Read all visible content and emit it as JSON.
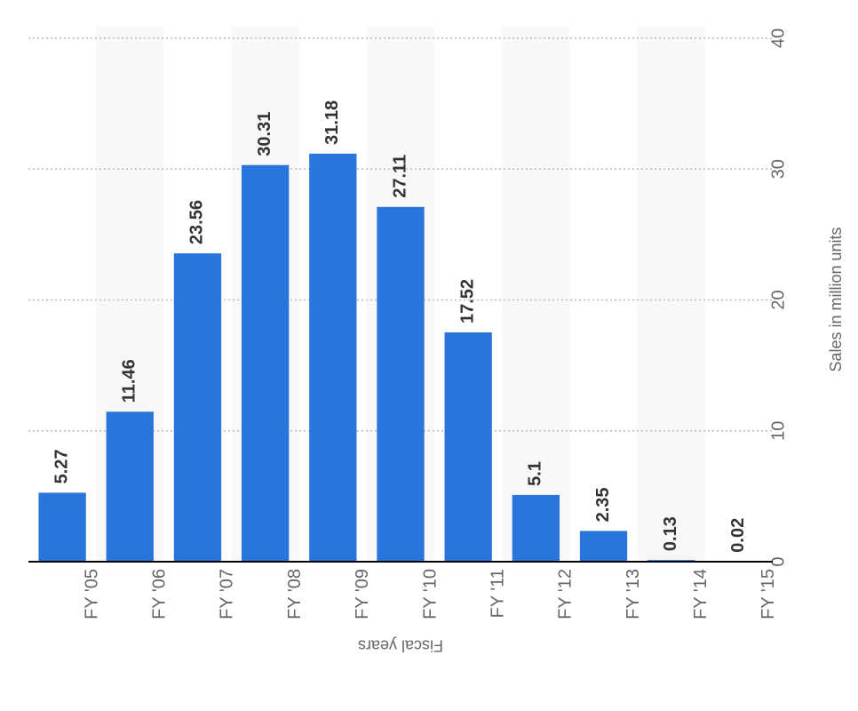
{
  "chart_data": {
    "type": "bar",
    "x_label": "Fiscal years",
    "y_label": "Sales in million units",
    "categories": [
      "FY '05",
      "FY '06",
      "FY '07",
      "FY '08",
      "FY '09",
      "FY '10",
      "FY '11",
      "FY '12",
      "FY '13",
      "FY '14",
      "FY '15"
    ],
    "values": [
      5.27,
      11.46,
      23.56,
      30.31,
      31.18,
      27.11,
      17.52,
      5.1,
      2.35,
      0.13,
      0.02
    ],
    "color": "#2a75dc",
    "ylim": [
      0,
      40
    ],
    "yticks": [
      0,
      10,
      20,
      30,
      40
    ],
    "grid": true
  }
}
